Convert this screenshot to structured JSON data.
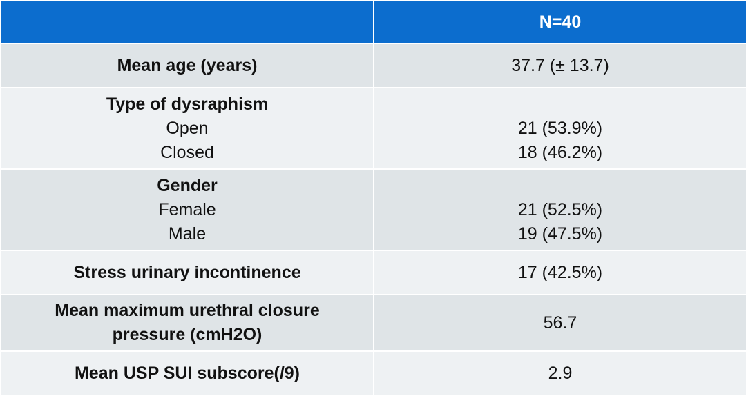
{
  "header": {
    "col1": "",
    "col2": "N=40"
  },
  "rows": [
    {
      "label": "Mean age (years)",
      "value": "37.7 (± 13.7)"
    },
    {
      "label": "Type of dysraphism",
      "subs": [
        {
          "label": "Open",
          "value": "21 (53.9%)"
        },
        {
          "label": "Closed",
          "value": "18 (46.2%)"
        }
      ]
    },
    {
      "label": "Gender",
      "subs": [
        {
          "label": "Female",
          "value": "21 (52.5%)"
        },
        {
          "label": "Male",
          "value": "19 (47.5%)"
        }
      ]
    },
    {
      "label": "Stress urinary incontinence",
      "value": "17 (42.5%)"
    },
    {
      "label": "Mean maximum urethral closure pressure (cmH2O)",
      "value": "56.7"
    },
    {
      "label": "Mean USP SUI subscore(/9)",
      "value": "2.9"
    }
  ],
  "colors": {
    "header_bg": "#0c6dce",
    "row_dark": "#dfe4e7",
    "row_light": "#eef1f3"
  }
}
